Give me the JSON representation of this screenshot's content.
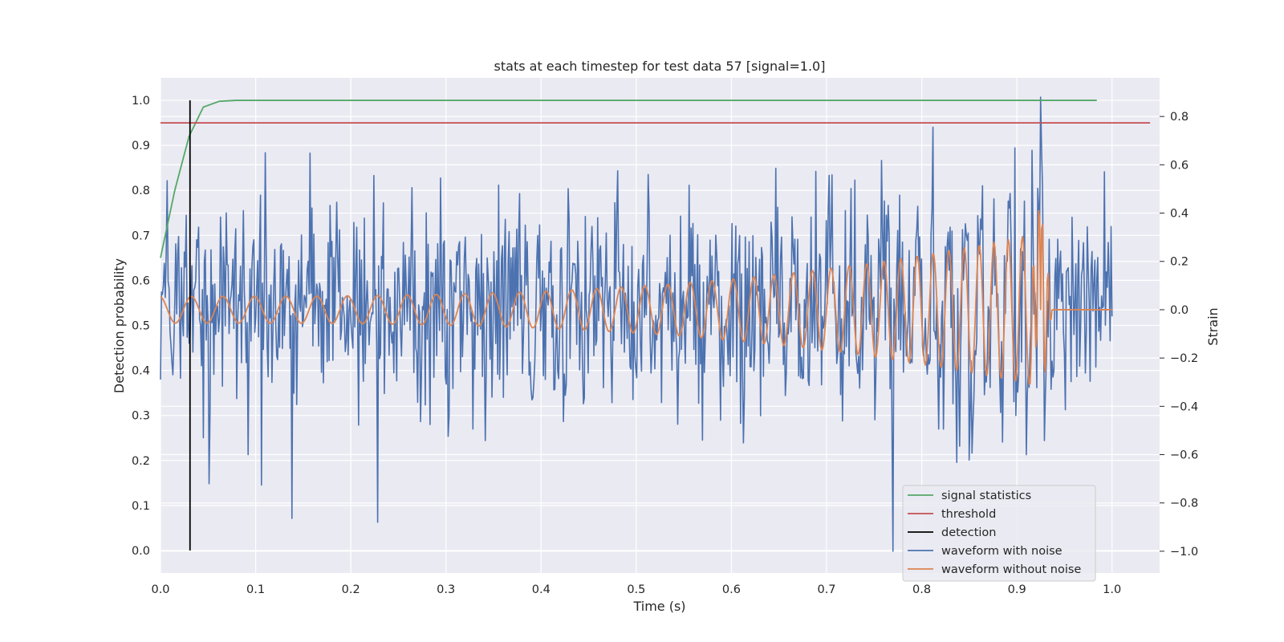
{
  "chart_data": {
    "type": "line",
    "title": "stats at each timestep for test data 57 [signal=1.0]",
    "xlabel": "Time (s)",
    "ylabel_left": "Detection probability",
    "ylabel_right": "Strain",
    "xlim": [
      0.0,
      1.05
    ],
    "ylim_left": [
      -0.05,
      1.05
    ],
    "ylim_right": [
      -1.09,
      0.96
    ],
    "x_ticks": [
      "0.0",
      "0.1",
      "0.2",
      "0.3",
      "0.4",
      "0.5",
      "0.6",
      "0.7",
      "0.8",
      "0.9",
      "1.0"
    ],
    "y_ticks_left": [
      "0.0",
      "0.1",
      "0.2",
      "0.3",
      "0.4",
      "0.5",
      "0.6",
      "0.7",
      "0.8",
      "0.9",
      "1.0"
    ],
    "y_ticks_right": [
      "−1.0",
      "−0.8",
      "−0.6",
      "−0.4",
      "−0.2",
      "0.0",
      "0.2",
      "0.4",
      "0.6",
      "0.8"
    ],
    "grid": true,
    "legend_position": "lower-right",
    "colors": {
      "background": "#eaeaf2",
      "grid": "#ffffff",
      "signal_statistics": "#55a868",
      "threshold": "#c44e52",
      "detection": "#000000",
      "waveform_with_noise": "#4c72b0",
      "waveform_without_noise": "#dd8452"
    },
    "series": [
      {
        "name": "signal statistics",
        "axis": "left",
        "x": [
          0.0,
          0.015,
          0.03,
          0.045,
          0.062,
          0.08,
          0.1,
          0.2,
          0.4,
          0.6,
          0.8,
          0.984
        ],
        "values": [
          0.65,
          0.8,
          0.92,
          0.985,
          0.998,
          1.0,
          1.0,
          1.0,
          1.0,
          1.0,
          1.0,
          1.0
        ]
      },
      {
        "name": "threshold",
        "axis": "left",
        "x": [
          0.0,
          1.04
        ],
        "values": [
          0.95,
          0.95
        ]
      },
      {
        "name": "detection",
        "axis": "left",
        "x": [
          0.031,
          0.031
        ],
        "values": [
          0.0,
          1.0
        ]
      },
      {
        "name": "waveform with noise",
        "axis": "right",
        "description_free": true,
        "x_range": [
          0.0,
          1.0
        ],
        "n_points": 1000,
        "noise_sigma": 0.22,
        "peaks": [
          {
            "x": 0.0925,
            "value": -0.6
          },
          {
            "x": 0.1105,
            "value": 0.65
          },
          {
            "x": 0.228,
            "value": -0.88
          },
          {
            "x": 0.77,
            "value": -1.0
          },
          {
            "x": 0.898,
            "value": 0.67
          },
          {
            "x": 0.91,
            "value": -0.6
          },
          {
            "x": 0.925,
            "value": 0.88
          },
          {
            "x": 0.916,
            "value": 0.66
          }
        ]
      },
      {
        "name": "waveform without noise",
        "axis": "right",
        "x_range": [
          0.0,
          1.0
        ],
        "merger_time": 0.925,
        "freq_start_hz": 30,
        "freq_end_hz": 70,
        "amp_start": 0.055,
        "amp_end": 0.32,
        "merger_peak": 0.5,
        "merger_trough": -0.5,
        "post_merger_value": 0.0
      }
    ]
  }
}
